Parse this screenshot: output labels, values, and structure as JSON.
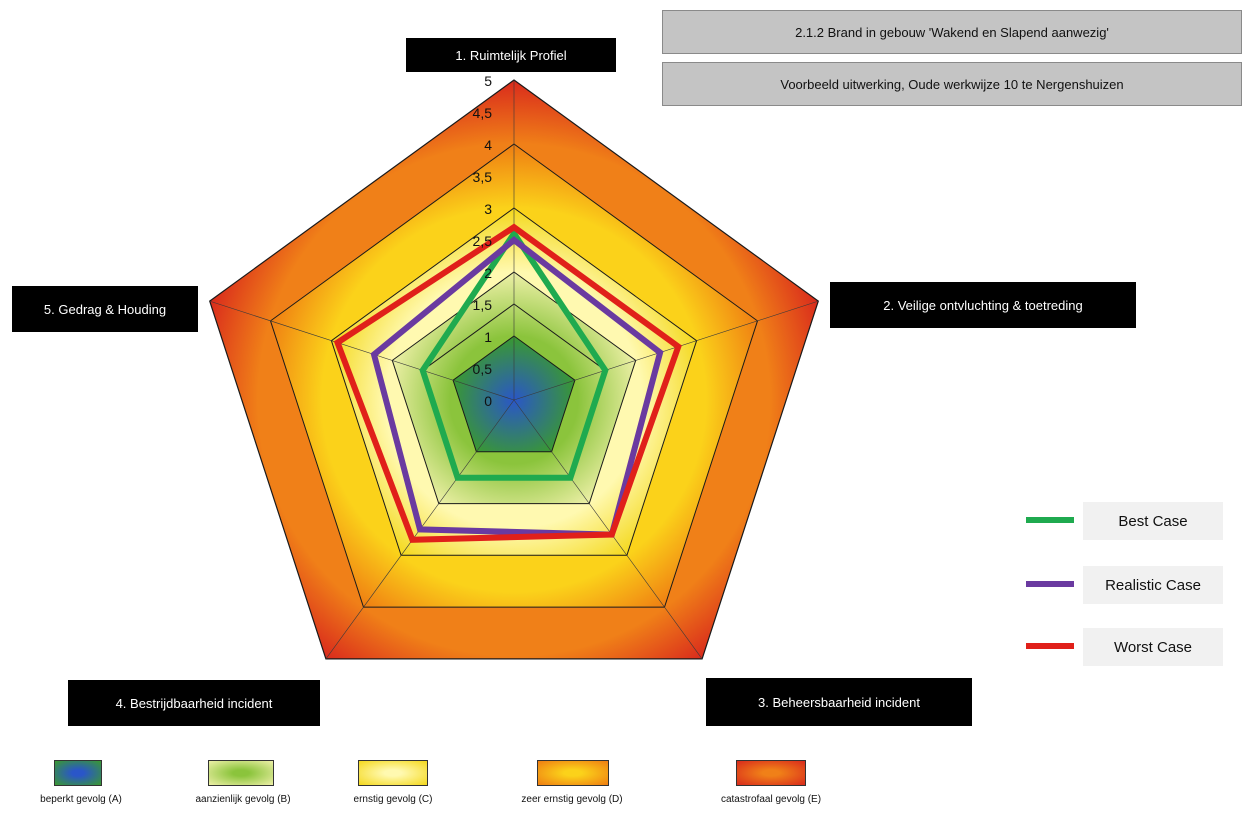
{
  "header": {
    "title": "2.1.2 Brand in gebouw 'Wakend en Slapend aanwezig'",
    "subtitle": "Voorbeeld uitwerking,  Oude werkwijze 10  te Nergenshuizen"
  },
  "chart_data": {
    "type": "radar",
    "axes": [
      "1.  Ruimtelijk Profiel",
      "2.  Veilige ontvluchting & toetreding",
      "3.  Beheersbaarheid incident",
      "4.  Bestrijdbaarheid incident",
      "5.  Gedrag & Houding"
    ],
    "rlim": [
      0,
      5
    ],
    "tick_labels": [
      "0",
      "0,5",
      "1",
      "1,5",
      "2",
      "2,5",
      "3",
      "3,5",
      "4",
      "4,5",
      "5"
    ],
    "grid_levels": [
      1,
      1.5,
      2,
      3,
      4,
      5
    ],
    "series": [
      {
        "name": "Best  Case",
        "color": "#1faa4f",
        "values": [
          2.6,
          1.5,
          1.5,
          1.5,
          1.5
        ]
      },
      {
        "name": "Realistic  Case",
        "color": "#6a3aa0",
        "values": [
          2.5,
          2.4,
          2.6,
          2.5,
          2.3
        ]
      },
      {
        "name": "Worst Case",
        "color": "#e0201a",
        "values": [
          2.7,
          2.7,
          2.6,
          2.7,
          2.9
        ]
      }
    ],
    "severity_bands": [
      {
        "label": "beperkt gevolg (A)",
        "from": 0,
        "to": 1,
        "inner": "#2a56c8",
        "outer": "#3a9a2e"
      },
      {
        "label": "aanzienlijk gevolg (B)",
        "from": 1,
        "to": 2,
        "inner": "#8bc43c",
        "outer": "#eef0a8"
      },
      {
        "label": "ernstig gevolg (C)",
        "from": 2,
        "to": 3,
        "inner": "#fff9b0",
        "outer": "#f4d81c"
      },
      {
        "label": "zeer ernstig gevolg (D)",
        "from": 3,
        "to": 4,
        "inner": "#fbd21a",
        "outer": "#ef7d12"
      },
      {
        "label": "catastrofaal gevolg (E)",
        "from": 4,
        "to": 5,
        "inner": "#f08018",
        "outer": "#d92a1c"
      }
    ],
    "legend_position": "right"
  }
}
